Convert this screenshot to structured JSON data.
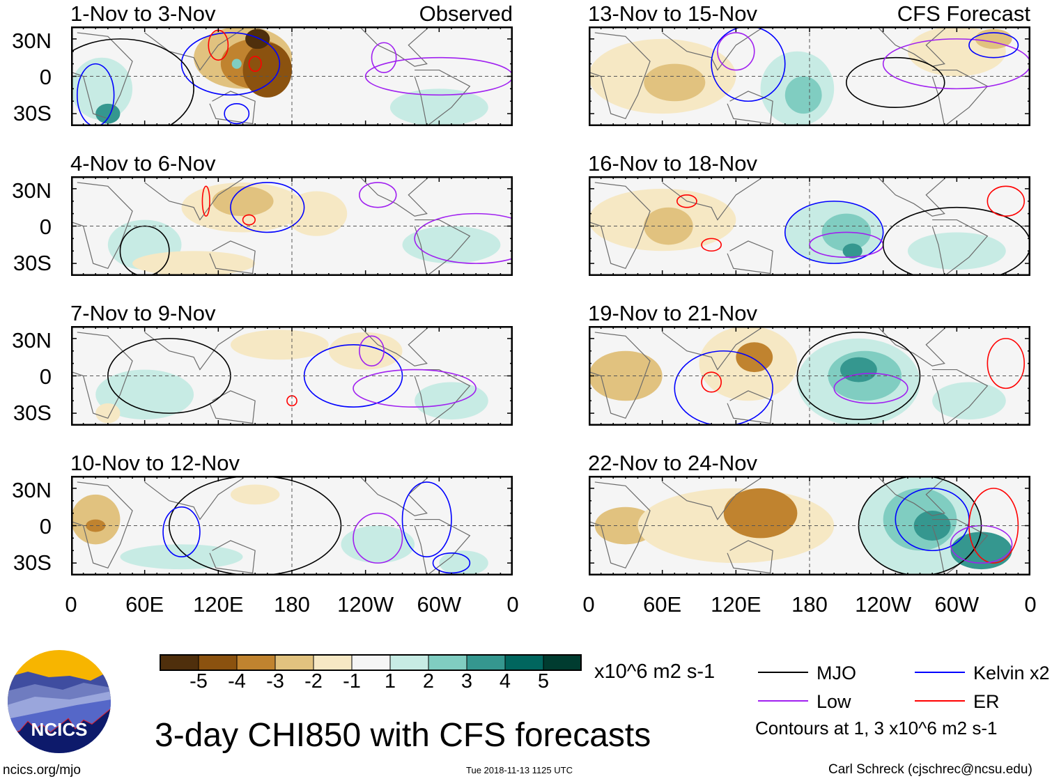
{
  "figure": {
    "title": "3-day CHI850 with CFS forecasts",
    "footer_left": "ncics.org/mjo",
    "footer_center": "Tue 2018-11-13 1125 UTC",
    "footer_right": "Carl Schreck (cjschrec@ncsu.edu)",
    "logo_text": "NCICS"
  },
  "columns": [
    {
      "label": "Observed"
    },
    {
      "label": "CFS Forecast"
    }
  ],
  "y_ticks": [
    "30N",
    "0",
    "30S"
  ],
  "x_ticks": [
    "0",
    "60E",
    "120E",
    "180",
    "120W",
    "60W",
    "0"
  ],
  "panels": [
    {
      "title": "1-Nov to 3-Nov",
      "column": "Observed"
    },
    {
      "title": "4-Nov to 6-Nov",
      "column": "Observed"
    },
    {
      "title": "7-Nov to 9-Nov",
      "column": "Observed"
    },
    {
      "title": "10-Nov to 12-Nov",
      "column": "Observed"
    },
    {
      "title": "13-Nov to 15-Nov",
      "column": "CFS Forecast"
    },
    {
      "title": "16-Nov to 18-Nov",
      "column": "CFS Forecast"
    },
    {
      "title": "19-Nov to 21-Nov",
      "column": "CFS Forecast"
    },
    {
      "title": "22-Nov to 24-Nov",
      "column": "CFS Forecast"
    }
  ],
  "colorbar": {
    "units": "x10^6 m2 s-1",
    "labels": [
      "-5",
      "-4",
      "-3",
      "-2",
      "-1",
      "1",
      "2",
      "3",
      "4",
      "5"
    ],
    "colors": [
      "#4f2f0c",
      "#8b520f",
      "#c0832f",
      "#e1c27f",
      "#f6e8c4",
      "#f5f5f5",
      "#c7ebe4",
      "#80cdc1",
      "#35978f",
      "#01665e",
      "#003c30"
    ]
  },
  "legend": {
    "items": [
      {
        "label": "MJO",
        "color": "#000000"
      },
      {
        "label": "Kelvin x2",
        "color": "#0000ff"
      },
      {
        "label": "Low",
        "color": "#a020f0"
      },
      {
        "label": "ER",
        "color": "#ff0000"
      }
    ],
    "note": "Contours at 1, 3 x10^6 m2 s-1"
  },
  "chart_data": {
    "type": "heatmap",
    "variable": "CHI850 anomaly",
    "units": "x10^6 m2 s-1",
    "levels": [
      -5,
      -4,
      -3,
      -2,
      -1,
      1,
      2,
      3,
      4,
      5
    ],
    "lon_range": [
      0,
      360
    ],
    "lat_range": [
      -40,
      40
    ],
    "contour_levels": [
      1,
      3
    ]
  }
}
